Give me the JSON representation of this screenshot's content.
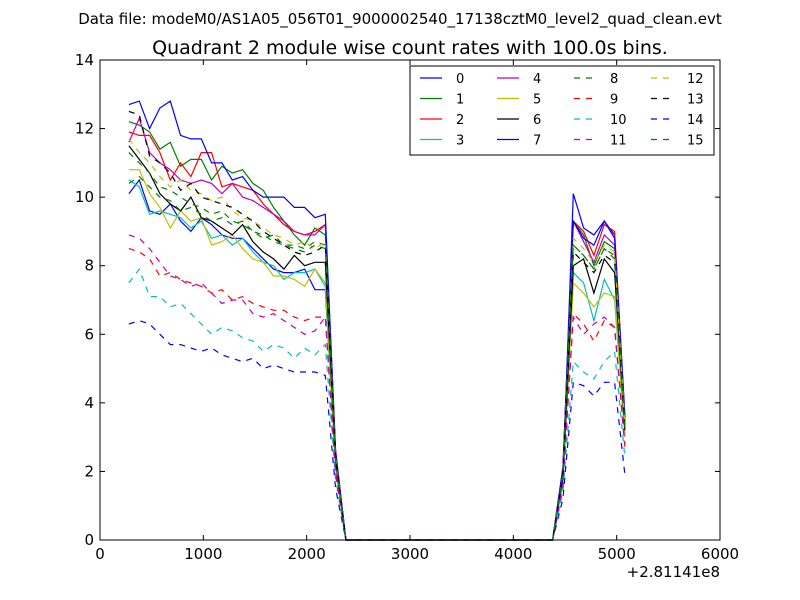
{
  "figure": {
    "suptitle": "Data file: modeM0/AS1A05_056T01_9000002540_17138cztM0_level2_quad_clean.evt",
    "title": "Quadrant 2 module wise count rates with 100.0s bins.",
    "x_offset_label": "+2.81141e8"
  },
  "chart_data": {
    "type": "line",
    "title": "Quadrant 2 module wise count rates with 100.0s bins.",
    "xlabel": "",
    "ylabel": "",
    "xlim": [
      0,
      6000
    ],
    "ylim": [
      0,
      14
    ],
    "x_ticks": [
      0,
      1000,
      2000,
      3000,
      4000,
      5000,
      6000
    ],
    "y_ticks": [
      0,
      2,
      4,
      6,
      8,
      10,
      12,
      14
    ],
    "x_offset": "+2.81141e8",
    "grid": false,
    "legend_placement": "top-right",
    "legend_columns": 4,
    "x": [
      280,
      380,
      480,
      580,
      680,
      780,
      880,
      980,
      1080,
      1180,
      1280,
      1380,
      1480,
      1580,
      1680,
      1780,
      1880,
      1980,
      2080,
      2180,
      2280,
      2380,
      2480,
      2580,
      2680,
      2780,
      2880,
      2980,
      3080,
      3180,
      3280,
      3380,
      3480,
      3580,
      3680,
      3780,
      3880,
      3980,
      4080,
      4180,
      4280,
      4380,
      4480,
      4580,
      4680,
      4780,
      4880,
      4980,
      5080
    ],
    "series": [
      {
        "name": "0",
        "color": "#0000ff",
        "dash": "solid",
        "values": [
          10.1,
          10.5,
          9.6,
          9.5,
          9.8,
          9.3,
          9.0,
          9.4,
          9.2,
          8.9,
          8.8,
          8.8,
          8.5,
          8.2,
          7.9,
          7.8,
          7.8,
          7.9,
          7.3,
          7.3,
          2.2,
          0,
          0,
          0,
          0,
          0,
          0,
          0,
          0,
          0,
          0,
          0,
          0,
          0,
          0,
          0,
          0,
          0,
          0,
          0,
          0,
          0,
          1.8,
          10.1,
          9.1,
          8.9,
          9.3,
          8.9,
          3.5
        ]
      },
      {
        "name": "1",
        "color": "#008000",
        "dash": "solid",
        "values": [
          12.2,
          12.1,
          11.9,
          11.4,
          11.6,
          10.9,
          11.1,
          11.1,
          10.5,
          10.9,
          10.7,
          10.8,
          10.4,
          10.2,
          9.7,
          9.3,
          8.9,
          8.6,
          9.1,
          8.9,
          2.5,
          0,
          0,
          0,
          0,
          0,
          0,
          0,
          0,
          0,
          0,
          0,
          0,
          0,
          0,
          0,
          0,
          0,
          0,
          0,
          0,
          0,
          2.0,
          9.3,
          8.9,
          8.0,
          8.7,
          8.5,
          3.3
        ]
      },
      {
        "name": "2",
        "color": "#ff0000",
        "dash": "solid",
        "values": [
          11.9,
          11.8,
          11.8,
          11.3,
          10.5,
          11.0,
          10.6,
          11.3,
          11.3,
          10.3,
          10.4,
          10.3,
          10.2,
          9.8,
          9.5,
          9.2,
          9.0,
          8.9,
          9.0,
          9.2,
          2.6,
          0,
          0,
          0,
          0,
          0,
          0,
          0,
          0,
          0,
          0,
          0,
          0,
          0,
          0,
          0,
          0,
          0,
          0,
          0,
          0,
          0,
          2.1,
          9.3,
          9.0,
          8.3,
          9.2,
          9.0,
          3.6
        ]
      },
      {
        "name": "3",
        "color": "#00bfbf",
        "dash": "solid",
        "values": [
          10.5,
          10.3,
          9.5,
          9.6,
          9.5,
          9.4,
          9.1,
          9.3,
          8.8,
          8.9,
          8.6,
          8.8,
          8.4,
          8.1,
          8.0,
          7.6,
          7.8,
          7.8,
          7.9,
          7.4,
          2.1,
          0,
          0,
          0,
          0,
          0,
          0,
          0,
          0,
          0,
          0,
          0,
          0,
          0,
          0,
          0,
          0,
          0,
          0,
          0,
          0,
          0,
          1.7,
          7.8,
          7.5,
          6.4,
          7.6,
          7.0,
          3.0
        ]
      },
      {
        "name": "4",
        "color": "#bf00bf",
        "dash": "solid",
        "values": [
          11.6,
          12.3,
          11.3,
          11.0,
          10.8,
          10.5,
          10.4,
          10.5,
          10.4,
          10.1,
          10.4,
          10.0,
          9.9,
          9.7,
          9.5,
          9.3,
          9.0,
          8.9,
          8.9,
          9.2,
          2.5,
          0,
          0,
          0,
          0,
          0,
          0,
          0,
          0,
          0,
          0,
          0,
          0,
          0,
          0,
          0,
          0,
          0,
          0,
          0,
          0,
          0,
          2.0,
          9.3,
          8.7,
          8.1,
          8.9,
          8.6,
          3.4
        ]
      },
      {
        "name": "5",
        "color": "#bfbf00",
        "dash": "solid",
        "values": [
          10.8,
          10.8,
          10.1,
          9.7,
          9.1,
          9.6,
          9.3,
          9.4,
          8.6,
          8.7,
          8.9,
          8.5,
          8.2,
          8.1,
          7.7,
          7.7,
          7.6,
          7.4,
          7.9,
          7.5,
          2.1,
          0,
          0,
          0,
          0,
          0,
          0,
          0,
          0,
          0,
          0,
          0,
          0,
          0,
          0,
          0,
          0,
          0,
          0,
          0,
          0,
          0,
          1.7,
          7.5,
          7.2,
          6.8,
          7.2,
          7.1,
          3.0
        ]
      },
      {
        "name": "6",
        "color": "#000000",
        "dash": "solid",
        "values": [
          11.5,
          11.1,
          10.7,
          10.1,
          9.8,
          9.6,
          10.0,
          9.4,
          9.3,
          9.1,
          8.9,
          9.2,
          8.7,
          8.4,
          8.2,
          7.9,
          8.3,
          8.0,
          8.1,
          8.1,
          2.3,
          0,
          0,
          0,
          0,
          0,
          0,
          0,
          0,
          0,
          0,
          0,
          0,
          0,
          0,
          0,
          0,
          0,
          0,
          0,
          0,
          0,
          1.8,
          8.0,
          8.2,
          7.2,
          8.2,
          7.8,
          3.2
        ]
      },
      {
        "name": "7",
        "color": "#0000ff",
        "dash": "solid",
        "values": [
          12.7,
          12.8,
          12.0,
          12.6,
          12.8,
          11.8,
          11.7,
          11.7,
          11.0,
          11.0,
          10.5,
          10.6,
          10.2,
          10.0,
          10.0,
          10.0,
          9.7,
          9.7,
          9.4,
          9.5,
          2.6,
          0,
          0,
          0,
          0,
          0,
          0,
          0,
          0,
          0,
          0,
          0,
          0,
          0,
          0,
          0,
          0,
          0,
          0,
          0,
          0,
          0,
          2.1,
          9.3,
          8.8,
          8.6,
          9.3,
          8.8,
          3.6
        ]
      },
      {
        "name": "8",
        "color": "#008000",
        "dash": "dashed",
        "values": [
          10.4,
          10.6,
          10.3,
          10.0,
          9.9,
          9.6,
          9.7,
          9.5,
          9.3,
          9.4,
          9.2,
          9.3,
          9.0,
          8.8,
          8.9,
          8.6,
          8.6,
          8.5,
          8.7,
          8.6,
          2.4,
          0,
          0,
          0,
          0,
          0,
          0,
          0,
          0,
          0,
          0,
          0,
          0,
          0,
          0,
          0,
          0,
          0,
          0,
          0,
          0,
          0,
          1.9,
          8.6,
          8.3,
          7.9,
          8.5,
          8.3,
          3.3
        ]
      },
      {
        "name": "9",
        "color": "#ff0000",
        "dash": "dashed",
        "values": [
          8.5,
          8.4,
          8.2,
          7.7,
          7.8,
          7.6,
          7.5,
          7.4,
          7.2,
          7.3,
          7.0,
          7.1,
          6.9,
          6.8,
          6.7,
          6.7,
          6.5,
          6.4,
          6.5,
          6.5,
          2.0,
          0,
          0,
          0,
          0,
          0,
          0,
          0,
          0,
          0,
          0,
          0,
          0,
          0,
          0,
          0,
          0,
          0,
          0,
          0,
          0,
          0,
          1.5,
          6.6,
          6.3,
          5.8,
          6.4,
          6.2,
          2.7
        ]
      },
      {
        "name": "10",
        "color": "#00bfbf",
        "dash": "dashed",
        "values": [
          7.5,
          7.9,
          7.1,
          7.1,
          6.8,
          6.9,
          6.6,
          6.3,
          6.0,
          6.2,
          6.1,
          5.9,
          5.8,
          5.5,
          5.7,
          5.6,
          5.3,
          5.6,
          5.4,
          5.7,
          1.8,
          0,
          0,
          0,
          0,
          0,
          0,
          0,
          0,
          0,
          0,
          0,
          0,
          0,
          0,
          0,
          0,
          0,
          0,
          0,
          0,
          0,
          1.4,
          5.2,
          4.9,
          4.7,
          5.2,
          5.5,
          2.4
        ]
      },
      {
        "name": "11",
        "color": "#bf00bf",
        "dash": "dashed",
        "values": [
          8.9,
          8.8,
          8.5,
          8.1,
          7.7,
          7.6,
          7.4,
          7.5,
          7.2,
          6.9,
          7.0,
          7.0,
          6.6,
          6.5,
          6.6,
          6.4,
          6.2,
          6.0,
          6.1,
          6.5,
          1.9,
          0,
          0,
          0,
          0,
          0,
          0,
          0,
          0,
          0,
          0,
          0,
          0,
          0,
          0,
          0,
          0,
          0,
          0,
          0,
          0,
          0,
          1.6,
          6.5,
          6.0,
          6.3,
          6.5,
          6.2,
          2.8
        ]
      },
      {
        "name": "12",
        "color": "#bfbf00",
        "dash": "dashed",
        "values": [
          11.7,
          11.3,
          11.0,
          10.6,
          10.3,
          10.5,
          10.2,
          10.1,
          9.9,
          10.0,
          9.6,
          9.4,
          9.3,
          9.1,
          8.9,
          8.8,
          8.6,
          8.7,
          8.5,
          8.7,
          2.4,
          0,
          0,
          0,
          0,
          0,
          0,
          0,
          0,
          0,
          0,
          0,
          0,
          0,
          0,
          0,
          0,
          0,
          0,
          0,
          0,
          0,
          1.9,
          8.8,
          8.5,
          8.1,
          8.6,
          8.4,
          3.3
        ]
      },
      {
        "name": "13",
        "color": "#000000",
        "dash": "dashed",
        "values": [
          12.5,
          12.4,
          11.2,
          11.0,
          10.7,
          10.2,
          10.4,
          10.0,
          9.9,
          9.8,
          9.7,
          9.5,
          9.3,
          9.0,
          8.8,
          8.6,
          8.4,
          8.3,
          8.4,
          8.6,
          2.4,
          0,
          0,
          0,
          0,
          0,
          0,
          0,
          0,
          0,
          0,
          0,
          0,
          0,
          0,
          0,
          0,
          0,
          0,
          0,
          0,
          0,
          1.9,
          8.4,
          8.1,
          7.8,
          8.3,
          8.1,
          3.2
        ]
      },
      {
        "name": "14",
        "color": "#0000ff",
        "dash": "dashed",
        "values": [
          6.3,
          6.4,
          6.3,
          6.0,
          5.7,
          5.7,
          5.6,
          5.5,
          5.6,
          5.4,
          5.3,
          5.2,
          5.3,
          5.0,
          5.1,
          5.0,
          4.9,
          4.9,
          4.9,
          4.8,
          1.5,
          0,
          0,
          0,
          0,
          0,
          0,
          0,
          0,
          0,
          0,
          0,
          0,
          0,
          0,
          0,
          0,
          0,
          0,
          0,
          0,
          0,
          1.2,
          4.6,
          4.5,
          4.2,
          4.6,
          4.6,
          1.9
        ]
      },
      {
        "name": "15",
        "color": "#008000",
        "dash": "dashed",
        "values": [
          11.3,
          11.0,
          10.7,
          10.3,
          10.2,
          10.0,
          9.8,
          9.7,
          9.5,
          9.6,
          9.3,
          9.2,
          9.0,
          8.9,
          8.7,
          8.6,
          8.5,
          8.4,
          8.6,
          8.5,
          2.3,
          0,
          0,
          0,
          0,
          0,
          0,
          0,
          0,
          0,
          0,
          0,
          0,
          0,
          0,
          0,
          0,
          0,
          0,
          0,
          0,
          0,
          1.9,
          8.6,
          8.3,
          7.9,
          8.5,
          8.2,
          3.3
        ]
      }
    ]
  }
}
